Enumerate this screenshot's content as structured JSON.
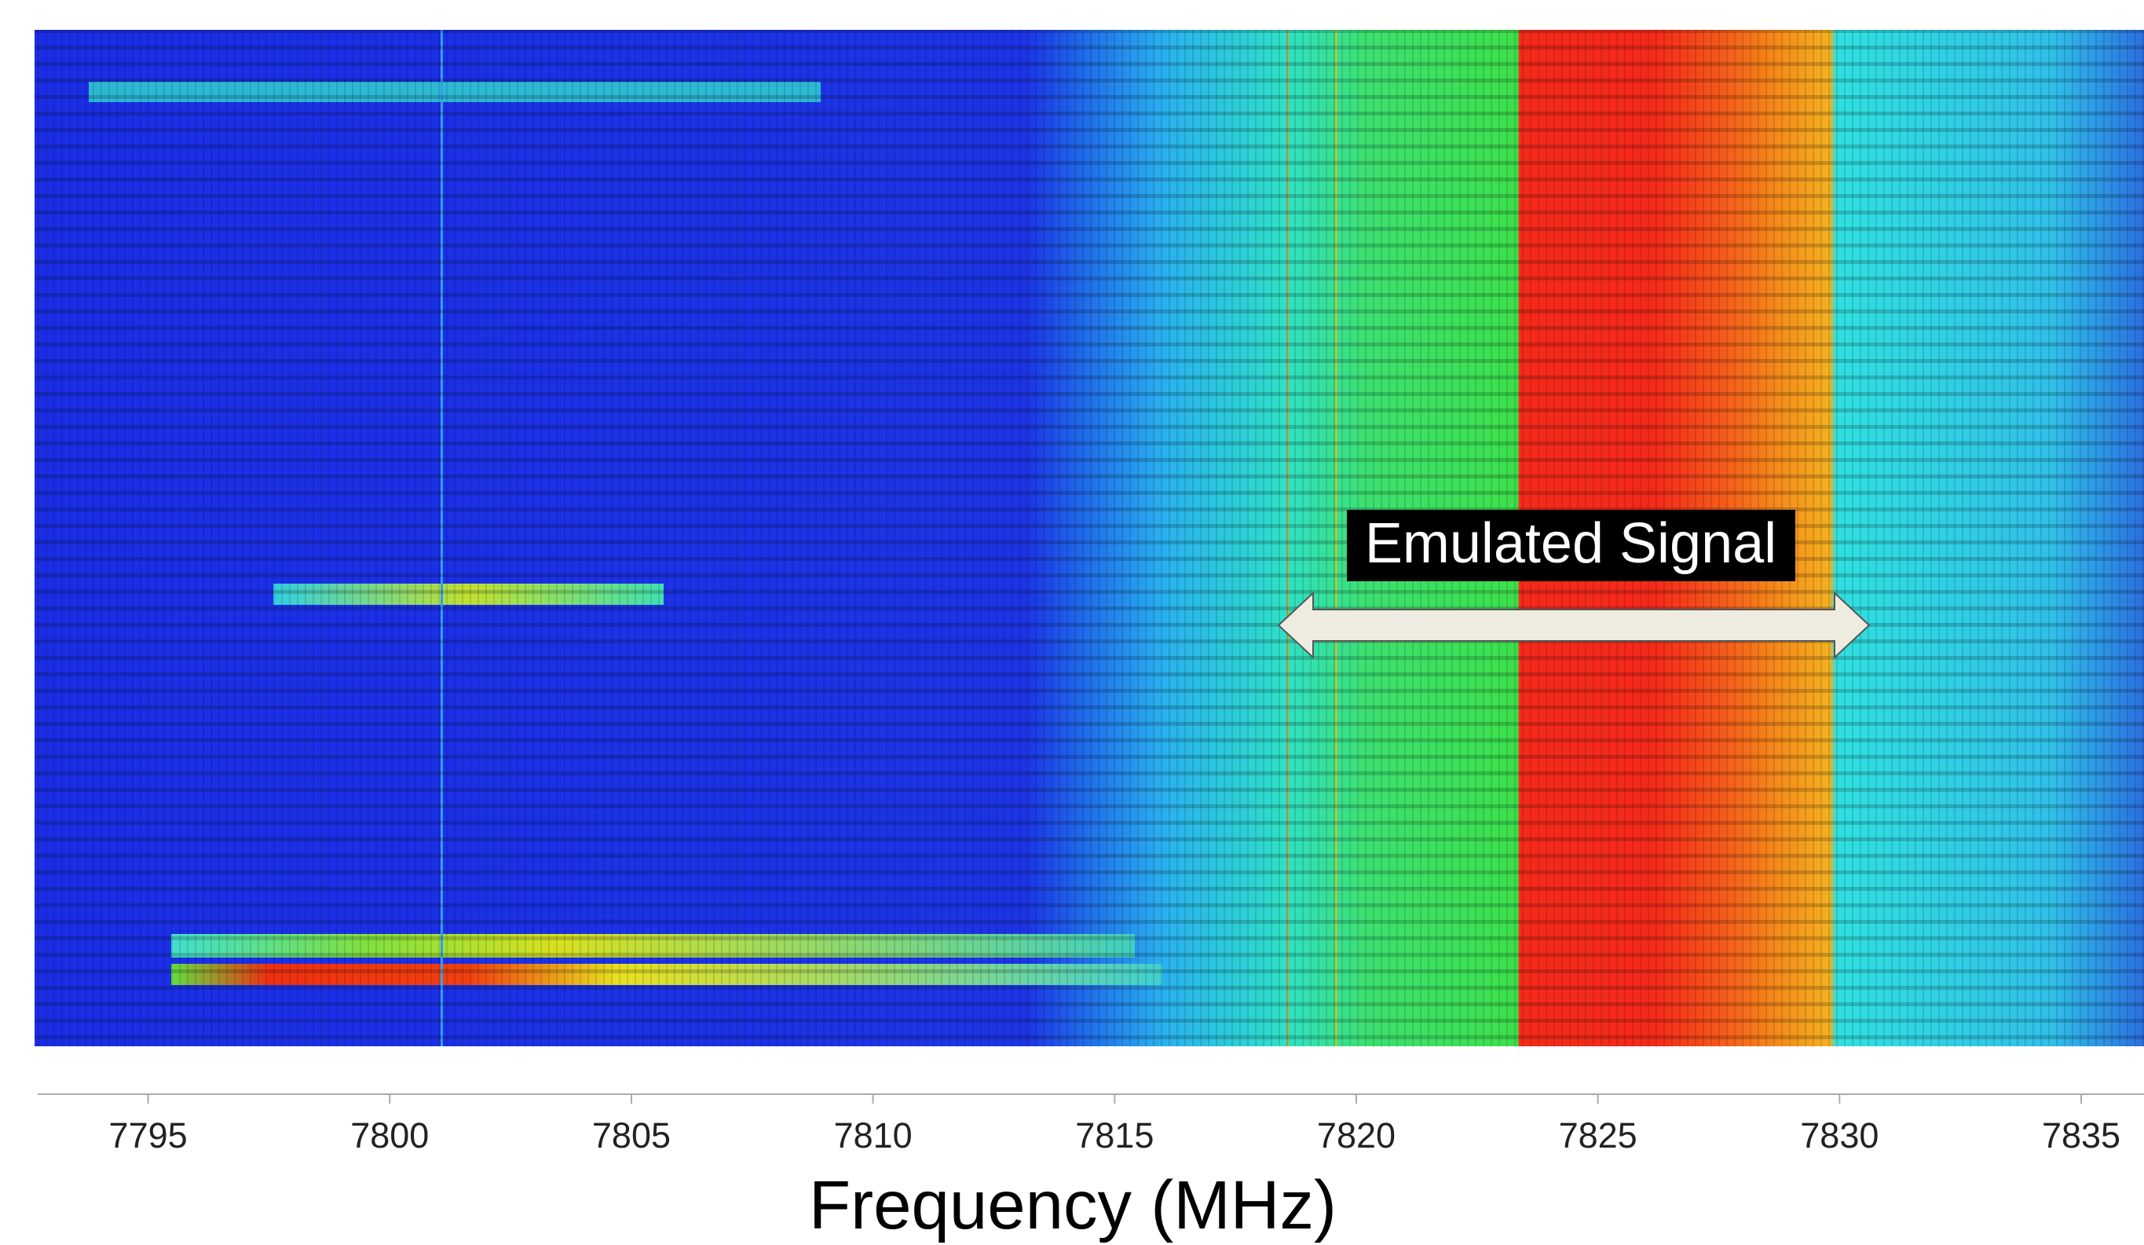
{
  "chart_data": {
    "type": "spectrogram",
    "xlabel": "Frequency (MHz)",
    "annotation": "Emulated Signal",
    "xlim": [
      7792.65,
      7836.3
    ],
    "xticks": [
      7795,
      7800,
      7805,
      7810,
      7815,
      7820,
      7825,
      7830,
      7835
    ]
  }
}
